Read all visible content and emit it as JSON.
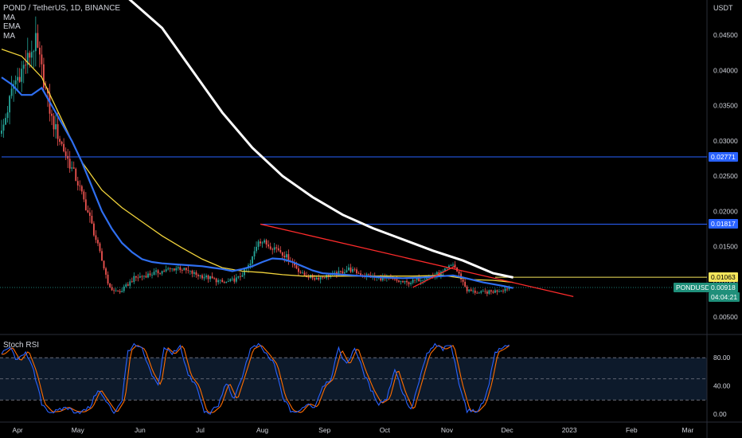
{
  "header": {
    "symbol_line": "POND / TetherUS, 1D, BINANCE",
    "indicators": [
      "MA",
      "EMA",
      "MA"
    ],
    "currency": "USDT"
  },
  "rsi_panel": {
    "title": "Stoch RSI",
    "ticks": [
      {
        "value": 80,
        "label": "80.00"
      },
      {
        "value": 40,
        "label": "40.00"
      },
      {
        "value": 0,
        "label": "0.00"
      }
    ]
  },
  "price_tags": {
    "level_1": "0.02771",
    "level_2": "0.01817",
    "level_3": "0.01063",
    "symbol": "PONDUSDT",
    "last_price": "0.00918",
    "countdown": "04:04:21"
  },
  "colors": {
    "background": "#000000",
    "up": "#26a69a",
    "down": "#ef5350",
    "ma_white": "#ffffff",
    "ema_yellow": "#f2d43b",
    "ma_blue": "#2f6ff0",
    "hline": "#2962ff",
    "trend_red": "#ff2b2b",
    "yellow_level": "#f5e65c",
    "stoch_k": "#2962ff",
    "stoch_d": "#ff6d00"
  },
  "chart_data": {
    "type": "candlestick",
    "y_ticks": [
      {
        "value": 0.045,
        "label": "0.04500"
      },
      {
        "value": 0.04,
        "label": "0.04000"
      },
      {
        "value": 0.035,
        "label": "0.03500"
      },
      {
        "value": 0.03,
        "label": "0.03000"
      },
      {
        "value": 0.025,
        "label": "0.02500"
      },
      {
        "value": 0.02,
        "label": "0.02000"
      },
      {
        "value": 0.015,
        "label": "0.01500"
      },
      {
        "value": 0.01,
        "label": "0.01000"
      },
      {
        "value": 0.005,
        "label": "0.00500"
      }
    ],
    "x_ticks": [
      {
        "day": 8,
        "label": "Apr"
      },
      {
        "day": 38,
        "label": "May"
      },
      {
        "day": 69,
        "label": "Jun"
      },
      {
        "day": 99,
        "label": "Jul"
      },
      {
        "day": 130,
        "label": "Aug"
      },
      {
        "day": 161,
        "label": "Sep"
      },
      {
        "day": 191,
        "label": "Oct"
      },
      {
        "day": 222,
        "label": "Nov"
      },
      {
        "day": 252,
        "label": "Dec"
      },
      {
        "day": 283,
        "label": "2023"
      },
      {
        "day": 314,
        "label": "Feb"
      },
      {
        "day": 342,
        "label": "Mar"
      }
    ],
    "price_anchors": [
      [
        0,
        0.031
      ],
      [
        6,
        0.038
      ],
      [
        12,
        0.041
      ],
      [
        17,
        0.044
      ],
      [
        20,
        0.04
      ],
      [
        25,
        0.033
      ],
      [
        32,
        0.028
      ],
      [
        38,
        0.024
      ],
      [
        44,
        0.019
      ],
      [
        49,
        0.014
      ],
      [
        54,
        0.009
      ],
      [
        59,
        0.0085
      ],
      [
        66,
        0.0105
      ],
      [
        73,
        0.011
      ],
      [
        80,
        0.0115
      ],
      [
        88,
        0.012
      ],
      [
        97,
        0.011
      ],
      [
        104,
        0.0105
      ],
      [
        111,
        0.0098
      ],
      [
        118,
        0.0105
      ],
      [
        124,
        0.0125
      ],
      [
        128,
        0.016
      ],
      [
        133,
        0.0152
      ],
      [
        138,
        0.0146
      ],
      [
        144,
        0.013
      ],
      [
        150,
        0.011
      ],
      [
        156,
        0.0105
      ],
      [
        162,
        0.0108
      ],
      [
        168,
        0.0112
      ],
      [
        173,
        0.0118
      ],
      [
        178,
        0.0112
      ],
      [
        186,
        0.0106
      ],
      [
        194,
        0.0103
      ],
      [
        202,
        0.0098
      ],
      [
        210,
        0.0105
      ],
      [
        220,
        0.0113
      ],
      [
        225,
        0.0125
      ],
      [
        229,
        0.0105
      ],
      [
        232,
        0.0088
      ],
      [
        238,
        0.0084
      ],
      [
        245,
        0.0086
      ],
      [
        250,
        0.0089
      ],
      [
        253,
        0.0092
      ]
    ],
    "ma_white_points": [
      [
        60,
        0.051
      ],
      [
        80,
        0.046
      ],
      [
        95,
        0.04
      ],
      [
        110,
        0.034
      ],
      [
        125,
        0.029
      ],
      [
        140,
        0.025
      ],
      [
        155,
        0.022
      ],
      [
        170,
        0.0195
      ],
      [
        185,
        0.0176
      ],
      [
        200,
        0.016
      ],
      [
        215,
        0.0144
      ],
      [
        230,
        0.013
      ],
      [
        245,
        0.0112
      ],
      [
        255,
        0.0106
      ]
    ],
    "ema_yellow_points": [
      [
        0,
        0.043
      ],
      [
        10,
        0.042
      ],
      [
        20,
        0.039
      ],
      [
        30,
        0.033
      ],
      [
        40,
        0.027
      ],
      [
        50,
        0.023
      ],
      [
        60,
        0.0205
      ],
      [
        70,
        0.0185
      ],
      [
        80,
        0.0165
      ],
      [
        90,
        0.0148
      ],
      [
        100,
        0.0132
      ],
      [
        110,
        0.012
      ],
      [
        120,
        0.0115
      ],
      [
        130,
        0.0113
      ],
      [
        140,
        0.011
      ],
      [
        150,
        0.0108
      ],
      [
        160,
        0.0108
      ],
      [
        175,
        0.0108
      ],
      [
        190,
        0.0108
      ],
      [
        205,
        0.0108
      ],
      [
        220,
        0.0109
      ],
      [
        235,
        0.0103
      ],
      [
        245,
        0.0102
      ],
      [
        255,
        0.0099
      ]
    ],
    "ma_blue_points": [
      [
        0,
        0.039
      ],
      [
        5,
        0.038
      ],
      [
        10,
        0.0365
      ],
      [
        15,
        0.0365
      ],
      [
        20,
        0.0375
      ],
      [
        25,
        0.035
      ],
      [
        30,
        0.0325
      ],
      [
        35,
        0.03
      ],
      [
        40,
        0.027
      ],
      [
        45,
        0.0235
      ],
      [
        50,
        0.02
      ],
      [
        55,
        0.0175
      ],
      [
        60,
        0.0155
      ],
      [
        65,
        0.0142
      ],
      [
        70,
        0.0132
      ],
      [
        75,
        0.0128
      ],
      [
        80,
        0.0126
      ],
      [
        85,
        0.0125
      ],
      [
        90,
        0.0124
      ],
      [
        95,
        0.0123
      ],
      [
        100,
        0.0122
      ],
      [
        105,
        0.012
      ],
      [
        110,
        0.0118
      ],
      [
        115,
        0.0115
      ],
      [
        120,
        0.0118
      ],
      [
        125,
        0.0122
      ],
      [
        130,
        0.0128
      ],
      [
        135,
        0.0133
      ],
      [
        140,
        0.0132
      ],
      [
        145,
        0.0128
      ],
      [
        150,
        0.0122
      ],
      [
        155,
        0.0116
      ],
      [
        160,
        0.0112
      ],
      [
        170,
        0.011
      ],
      [
        180,
        0.0108
      ],
      [
        190,
        0.0106
      ],
      [
        200,
        0.0105
      ],
      [
        210,
        0.0106
      ],
      [
        220,
        0.0108
      ],
      [
        225,
        0.0109
      ],
      [
        230,
        0.0106
      ],
      [
        240,
        0.0099
      ],
      [
        250,
        0.0094
      ],
      [
        255,
        0.0091
      ]
    ],
    "horizontal_levels": [
      {
        "price": 0.02771,
        "from_day": 0,
        "label": "0.02771"
      },
      {
        "price": 0.01817,
        "from_day": 129,
        "label": "0.01817"
      }
    ],
    "yellow_level": {
      "price": 0.01063,
      "from_day": 246,
      "label": "0.01063"
    },
    "trend_lines": [
      {
        "from": [
          129,
          0.01817
        ],
        "to": [
          285,
          0.0079
        ]
      },
      {
        "from": [
          205,
          0.0092
        ],
        "to": [
          226,
          0.0122
        ]
      }
    ],
    "last_price": 0.00918,
    "stoch_rsi_anchors": [
      [
        0,
        85
      ],
      [
        4,
        95
      ],
      [
        8,
        75
      ],
      [
        12,
        90
      ],
      [
        16,
        60
      ],
      [
        20,
        15
      ],
      [
        24,
        3
      ],
      [
        28,
        4
      ],
      [
        32,
        10
      ],
      [
        36,
        4
      ],
      [
        40,
        3
      ],
      [
        44,
        10
      ],
      [
        48,
        35
      ],
      [
        52,
        18
      ],
      [
        56,
        2
      ],
      [
        60,
        20
      ],
      [
        63,
        90
      ],
      [
        66,
        98
      ],
      [
        70,
        92
      ],
      [
        74,
        60
      ],
      [
        78,
        40
      ],
      [
        81,
        95
      ],
      [
        85,
        85
      ],
      [
        89,
        98
      ],
      [
        93,
        55
      ],
      [
        97,
        40
      ],
      [
        101,
        3
      ],
      [
        104,
        2
      ],
      [
        108,
        12
      ],
      [
        112,
        45
      ],
      [
        116,
        20
      ],
      [
        120,
        55
      ],
      [
        124,
        92
      ],
      [
        128,
        98
      ],
      [
        132,
        85
      ],
      [
        136,
        70
      ],
      [
        140,
        25
      ],
      [
        144,
        5
      ],
      [
        148,
        2
      ],
      [
        152,
        15
      ],
      [
        156,
        10
      ],
      [
        160,
        40
      ],
      [
        164,
        50
      ],
      [
        168,
        92
      ],
      [
        172,
        70
      ],
      [
        176,
        95
      ],
      [
        180,
        62
      ],
      [
        184,
        35
      ],
      [
        188,
        15
      ],
      [
        192,
        22
      ],
      [
        196,
        65
      ],
      [
        200,
        30
      ],
      [
        204,
        5
      ],
      [
        208,
        45
      ],
      [
        212,
        85
      ],
      [
        216,
        98
      ],
      [
        220,
        92
      ],
      [
        224,
        98
      ],
      [
        228,
        45
      ],
      [
        232,
        5
      ],
      [
        236,
        3
      ],
      [
        240,
        15
      ],
      [
        243,
        45
      ],
      [
        246,
        88
      ],
      [
        249,
        92
      ],
      [
        253,
        100
      ]
    ]
  }
}
